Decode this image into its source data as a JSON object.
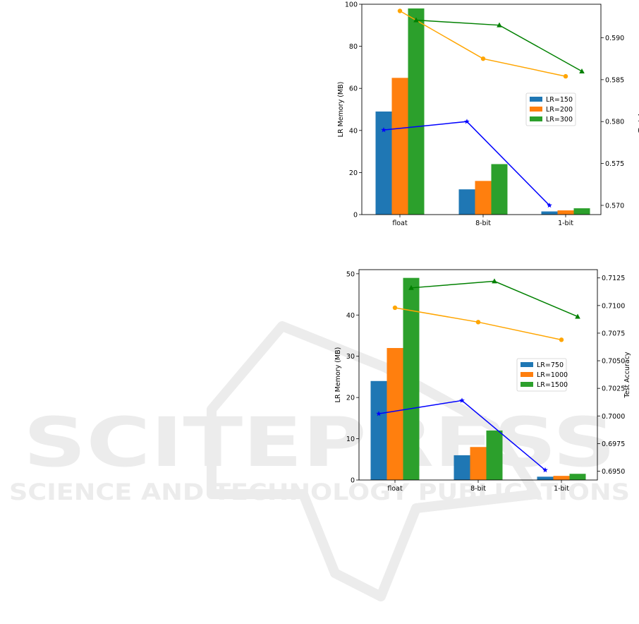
{
  "watermark": {
    "line1": "SCITEPRESS",
    "line2": "SCIENCE AND TECHNOLOGY PUBLICATIONS",
    "color": "#ececec"
  },
  "chart_data": [
    {
      "type": "bar",
      "categories": [
        "float",
        "8-bit",
        "1-bit"
      ],
      "ylabel": "LR Memory (MB)",
      "ylabel_right": "Test Accuracy",
      "ylim": [
        0,
        100
      ],
      "ylim_right": [
        0.5689,
        0.594
      ],
      "yticks": [
        "0",
        "20",
        "40",
        "60",
        "80",
        "100"
      ],
      "yticks_right": [
        "0.570",
        "0.575",
        "0.580",
        "0.585",
        "0.590"
      ],
      "legend_position": "right",
      "grid": false,
      "series": [
        {
          "name": "LR=150",
          "color": "#1f77b4",
          "values": [
            49,
            12,
            1.5
          ],
          "accuracy": [
            0.579,
            0.58,
            0.57
          ],
          "line_color": "#0000ff",
          "marker": "star"
        },
        {
          "name": "LR=200",
          "color": "#ff7f0e",
          "values": [
            65,
            16,
            2
          ],
          "accuracy": [
            0.5932,
            0.5875,
            0.5854
          ],
          "line_color": "#ffa500",
          "marker": "circle"
        },
        {
          "name": "LR=300",
          "color": "#2ca02c",
          "values": [
            98,
            24,
            3
          ],
          "accuracy": [
            0.5921,
            0.5915,
            0.586
          ],
          "line_color": "#008000",
          "marker": "triangle"
        }
      ]
    },
    {
      "type": "bar",
      "categories": [
        "float",
        "8-bit",
        "1-bit"
      ],
      "ylabel": "LR Memory (MB)",
      "ylabel_right": "Test Accuracy",
      "ylim": [
        0,
        51
      ],
      "ylim_right": [
        0.6942,
        0.71325
      ],
      "yticks": [
        "0",
        "10",
        "20",
        "30",
        "40",
        "50"
      ],
      "yticks_right": [
        "0.6950",
        "0.6975",
        "0.7000",
        "0.7025",
        "0.7050",
        "0.7075",
        "0.7100",
        "0.7125"
      ],
      "legend_position": "right",
      "grid": false,
      "series": [
        {
          "name": "LR=750",
          "color": "#1f77b4",
          "values": [
            24,
            6,
            0.8
          ],
          "accuracy": [
            0.7002,
            0.7014,
            0.6951
          ],
          "line_color": "#0000ff",
          "marker": "star"
        },
        {
          "name": "LR=1000",
          "color": "#ff7f0e",
          "values": [
            32,
            8,
            1
          ],
          "accuracy": [
            0.7098,
            0.7085,
            0.7069
          ],
          "line_color": "#ffa500",
          "marker": "circle"
        },
        {
          "name": "LR=1500",
          "color": "#2ca02c",
          "values": [
            49,
            12,
            1.5
          ],
          "accuracy": [
            0.7116,
            0.7122,
            0.709
          ],
          "line_color": "#008000",
          "marker": "triangle"
        }
      ]
    }
  ]
}
